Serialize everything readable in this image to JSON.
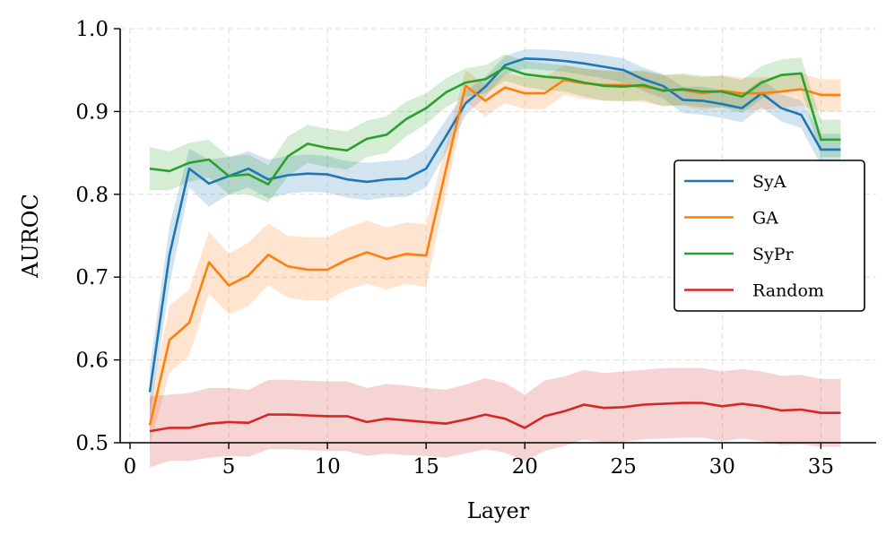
{
  "chart_data": {
    "type": "line",
    "xlabel": "Layer",
    "ylabel": "AUROC",
    "xlim": [
      -0.5,
      37.8
    ],
    "ylim": [
      0.5,
      1.0
    ],
    "xticks": [
      0,
      5,
      10,
      15,
      20,
      25,
      30,
      35
    ],
    "xtick_labels": [
      "0",
      "5",
      "10",
      "15",
      "20",
      "25",
      "30",
      "35"
    ],
    "yticks": [
      0.5,
      0.6,
      0.7,
      0.8,
      0.9,
      1.0
    ],
    "ytick_labels": [
      "0.5",
      "0.6",
      "0.7",
      "0.8",
      "0.9",
      "1.0"
    ],
    "grid": true,
    "legend_position": "center-right",
    "x": [
      1,
      2,
      3,
      4,
      5,
      6,
      7,
      8,
      9,
      10,
      11,
      12,
      13,
      14,
      15,
      16,
      17,
      18,
      19,
      20,
      21,
      22,
      23,
      24,
      25,
      26,
      27,
      28,
      29,
      30,
      31,
      32,
      33,
      34,
      35,
      36
    ],
    "series": [
      {
        "name": "SyA",
        "color": "#1f77b4",
        "values": [
          0.561,
          0.727,
          0.831,
          0.813,
          0.822,
          0.831,
          0.818,
          0.823,
          0.825,
          0.824,
          0.818,
          0.815,
          0.818,
          0.819,
          0.831,
          0.87,
          0.91,
          0.93,
          0.956,
          0.964,
          0.963,
          0.961,
          0.958,
          0.954,
          0.95,
          0.939,
          0.931,
          0.914,
          0.913,
          0.909,
          0.904,
          0.922,
          0.904,
          0.896,
          0.854,
          0.854
        ],
        "lower": [
          0.53,
          0.69,
          0.808,
          0.785,
          0.8,
          0.808,
          0.795,
          0.801,
          0.803,
          0.802,
          0.796,
          0.793,
          0.796,
          0.797,
          0.808,
          0.85,
          0.895,
          0.918,
          0.945,
          0.952,
          0.95,
          0.948,
          0.944,
          0.94,
          0.935,
          0.925,
          0.916,
          0.898,
          0.896,
          0.892,
          0.887,
          0.905,
          0.888,
          0.88,
          0.835,
          0.835
        ],
        "upper": [
          0.59,
          0.762,
          0.855,
          0.842,
          0.845,
          0.852,
          0.842,
          0.846,
          0.848,
          0.846,
          0.84,
          0.838,
          0.84,
          0.842,
          0.855,
          0.89,
          0.925,
          0.942,
          0.967,
          0.975,
          0.975,
          0.973,
          0.971,
          0.968,
          0.964,
          0.953,
          0.945,
          0.93,
          0.93,
          0.926,
          0.921,
          0.939,
          0.921,
          0.913,
          0.873,
          0.873
        ]
      },
      {
        "name": "GA",
        "color": "#ff7f0e",
        "values": [
          0.521,
          0.624,
          0.645,
          0.718,
          0.69,
          0.702,
          0.727,
          0.713,
          0.709,
          0.709,
          0.721,
          0.73,
          0.722,
          0.728,
          0.726,
          0.83,
          0.931,
          0.913,
          0.929,
          0.922,
          0.922,
          0.938,
          0.934,
          0.932,
          0.932,
          0.93,
          0.926,
          0.926,
          0.922,
          0.925,
          0.922,
          0.922,
          0.924,
          0.927,
          0.92,
          0.92
        ],
        "lower": [
          0.495,
          0.585,
          0.605,
          0.68,
          0.655,
          0.665,
          0.69,
          0.675,
          0.672,
          0.672,
          0.685,
          0.692,
          0.685,
          0.692,
          0.688,
          0.8,
          0.912,
          0.894,
          0.91,
          0.903,
          0.903,
          0.92,
          0.915,
          0.913,
          0.913,
          0.911,
          0.907,
          0.907,
          0.902,
          0.905,
          0.902,
          0.902,
          0.904,
          0.907,
          0.9,
          0.9
        ],
        "upper": [
          0.55,
          0.665,
          0.685,
          0.755,
          0.728,
          0.742,
          0.765,
          0.75,
          0.748,
          0.748,
          0.76,
          0.768,
          0.76,
          0.766,
          0.764,
          0.86,
          0.95,
          0.932,
          0.947,
          0.941,
          0.941,
          0.956,
          0.952,
          0.95,
          0.95,
          0.948,
          0.944,
          0.944,
          0.941,
          0.944,
          0.941,
          0.941,
          0.943,
          0.946,
          0.939,
          0.939
        ]
      },
      {
        "name": "SyPr",
        "color": "#2ca02c",
        "values": [
          0.831,
          0.828,
          0.838,
          0.842,
          0.822,
          0.824,
          0.812,
          0.846,
          0.861,
          0.856,
          0.853,
          0.867,
          0.872,
          0.891,
          0.904,
          0.923,
          0.935,
          0.939,
          0.953,
          0.945,
          0.942,
          0.94,
          0.935,
          0.931,
          0.93,
          0.932,
          0.925,
          0.927,
          0.924,
          0.924,
          0.918,
          0.935,
          0.944,
          0.946,
          0.866,
          0.866
        ],
        "lower": [
          0.805,
          0.805,
          0.815,
          0.82,
          0.8,
          0.8,
          0.79,
          0.822,
          0.838,
          0.833,
          0.83,
          0.845,
          0.85,
          0.87,
          0.885,
          0.905,
          0.918,
          0.922,
          0.937,
          0.93,
          0.926,
          0.924,
          0.918,
          0.913,
          0.912,
          0.914,
          0.906,
          0.908,
          0.905,
          0.905,
          0.898,
          0.915,
          0.925,
          0.927,
          0.845,
          0.845
        ],
        "upper": [
          0.857,
          0.852,
          0.862,
          0.866,
          0.845,
          0.848,
          0.835,
          0.87,
          0.884,
          0.879,
          0.876,
          0.889,
          0.894,
          0.912,
          0.922,
          0.94,
          0.952,
          0.956,
          0.969,
          0.961,
          0.958,
          0.956,
          0.952,
          0.949,
          0.948,
          0.95,
          0.944,
          0.946,
          0.943,
          0.943,
          0.938,
          0.955,
          0.963,
          0.965,
          0.89,
          0.89
        ]
      },
      {
        "name": "Random",
        "color": "#d62728",
        "values": [
          0.514,
          0.518,
          0.518,
          0.523,
          0.525,
          0.524,
          0.534,
          0.534,
          0.533,
          0.532,
          0.532,
          0.525,
          0.529,
          0.527,
          0.525,
          0.523,
          0.528,
          0.534,
          0.529,
          0.518,
          0.532,
          0.538,
          0.546,
          0.542,
          0.543,
          0.546,
          0.547,
          0.548,
          0.548,
          0.544,
          0.547,
          0.544,
          0.539,
          0.54,
          0.536,
          0.536
        ],
        "lower": [
          0.47,
          0.478,
          0.478,
          0.482,
          0.484,
          0.483,
          0.492,
          0.492,
          0.491,
          0.49,
          0.49,
          0.484,
          0.487,
          0.485,
          0.484,
          0.482,
          0.487,
          0.492,
          0.488,
          0.478,
          0.49,
          0.496,
          0.504,
          0.5,
          0.501,
          0.504,
          0.505,
          0.506,
          0.506,
          0.502,
          0.505,
          0.502,
          0.497,
          0.498,
          0.495,
          0.495
        ],
        "upper": [
          0.556,
          0.558,
          0.56,
          0.566,
          0.566,
          0.564,
          0.576,
          0.576,
          0.575,
          0.574,
          0.574,
          0.566,
          0.571,
          0.569,
          0.566,
          0.564,
          0.57,
          0.578,
          0.572,
          0.558,
          0.575,
          0.58,
          0.588,
          0.584,
          0.586,
          0.588,
          0.59,
          0.59,
          0.59,
          0.586,
          0.589,
          0.586,
          0.581,
          0.582,
          0.577,
          0.577
        ]
      }
    ]
  }
}
